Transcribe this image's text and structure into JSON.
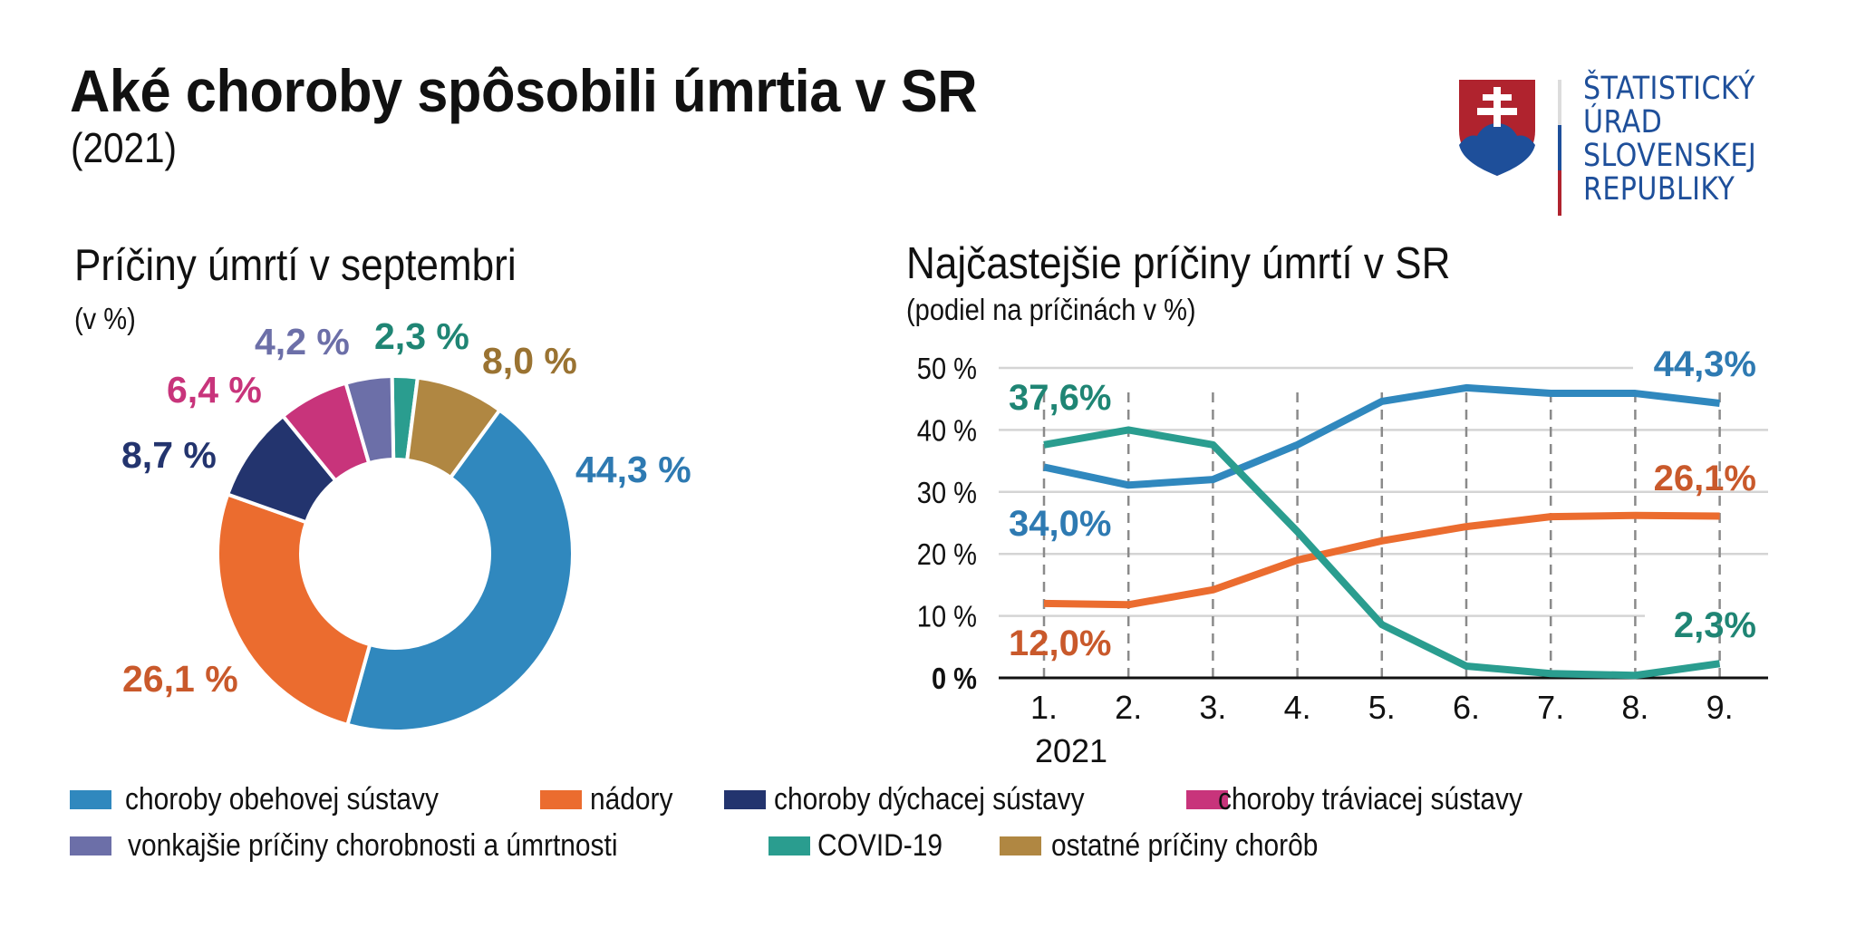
{
  "header": {
    "title": "Aké choroby spôsobili úmrtia v SR",
    "subtitle": "(2021)"
  },
  "logo": {
    "icon": "slovak-coat-of-arms-icon",
    "lines": [
      "ŠTATISTICKÝ",
      "ÚRAD",
      "SLOVENSKEJ",
      "REPUBLIKY"
    ],
    "color": "#1e4f9a"
  },
  "colors": {
    "circulatory": "#3088be",
    "tumors": "#eb6c2f",
    "respiratory": "#23346e",
    "digestive": "#c8347b",
    "external": "#6c6fa8",
    "covid": "#2a9d8f",
    "other": "#b08742"
  },
  "chart_data": [
    {
      "type": "pie",
      "variant": "donut",
      "title": "Príčiny úmrtí v septembri",
      "subtitle": "(v %)",
      "start": "top, clockwise",
      "slices": [
        {
          "key": "covid",
          "name": "COVID-19",
          "value": 2.3,
          "label": "2,3 %",
          "color": "#2a9d8f",
          "label_color": "#1f8574"
        },
        {
          "key": "other",
          "name": "ostatné príčiny chorôb",
          "value": 8.0,
          "label": "8,0 %",
          "color": "#b08742",
          "label_color": "#9a7332"
        },
        {
          "key": "circulatory",
          "name": "choroby obehovej sústavy",
          "value": 44.3,
          "label": "44,3 %",
          "color": "#3088be",
          "label_color": "#2e7ab2"
        },
        {
          "key": "tumors",
          "name": "nádory",
          "value": 26.1,
          "label": "26,1 %",
          "color": "#eb6c2f",
          "label_color": "#c9592b"
        },
        {
          "key": "respiratory",
          "name": "choroby dýchacej sústavy",
          "value": 8.7,
          "label": "8,7 %",
          "color": "#23346e",
          "label_color": "#23346e"
        },
        {
          "key": "digestive",
          "name": "choroby tráviacej sústavy",
          "value": 6.4,
          "label": "6,4 %",
          "color": "#c8347b",
          "label_color": "#c8347b"
        },
        {
          "key": "external",
          "name": "vonkajšie príčiny chorobnosti a úmrtnosti",
          "value": 4.2,
          "label": "4,2 %",
          "color": "#6c6fa8",
          "label_color": "#6c6fa8"
        }
      ]
    },
    {
      "type": "line",
      "title": "Najčastejšie príčiny úmrtí v SR",
      "subtitle": "(podiel na príčinách v %)",
      "x": [
        "1.",
        "2.",
        "3.",
        "4.",
        "5.",
        "6.",
        "7.",
        "8.",
        "9."
      ],
      "x_caption": "2021",
      "ylim": [
        0,
        50
      ],
      "yticks": [
        {
          "value": 0,
          "label": "0 %",
          "bold": true
        },
        {
          "value": 10,
          "label": "10 %"
        },
        {
          "value": 20,
          "label": "20 %"
        },
        {
          "value": 30,
          "label": "30 %"
        },
        {
          "value": 40,
          "label": "40 %"
        },
        {
          "value": 50,
          "label": "50 %"
        }
      ],
      "grid": true,
      "vertical_dashed_guides": true,
      "series": [
        {
          "name": "choroby obehovej sústavy",
          "color": "#3088be",
          "label_color": "#2e7ab2",
          "values": [
            34.0,
            31.1,
            32.0,
            37.6,
            44.6,
            46.8,
            45.9,
            45.9,
            44.3
          ],
          "start_label": "34,0%",
          "end_label": "44,3%"
        },
        {
          "name": "nádory",
          "color": "#eb6c2f",
          "label_color": "#c9592b",
          "values": [
            12.0,
            11.8,
            14.2,
            19.0,
            22.1,
            24.4,
            26.0,
            26.2,
            26.1
          ],
          "start_label": "12,0%",
          "end_label": "26,1%"
        },
        {
          "name": "COVID-19",
          "color": "#2a9d8f",
          "label_color": "#1f8574",
          "values": [
            37.6,
            40.0,
            37.6,
            23.6,
            8.6,
            1.9,
            0.7,
            0.4,
            2.3
          ],
          "start_label": "37,6%",
          "end_label": "2,3%"
        }
      ]
    }
  ],
  "legend": [
    {
      "key": "circulatory",
      "label": "choroby obehovej sústavy",
      "color": "#3088be"
    },
    {
      "key": "tumors",
      "label": "nádory",
      "color": "#eb6c2f"
    },
    {
      "key": "respiratory",
      "label": "choroby dýchacej sústavy",
      "color": "#23346e"
    },
    {
      "key": "digestive",
      "label": "choroby tráviacej sústavy",
      "color": "#c8347b"
    },
    {
      "key": "external",
      "label": "vonkajšie príčiny chorobnosti a úmrtnosti",
      "color": "#6c6fa8"
    },
    {
      "key": "covid",
      "label": "COVID-19",
      "color": "#2a9d8f"
    },
    {
      "key": "other",
      "label": "ostatné príčiny chorôb",
      "color": "#b08742"
    }
  ]
}
